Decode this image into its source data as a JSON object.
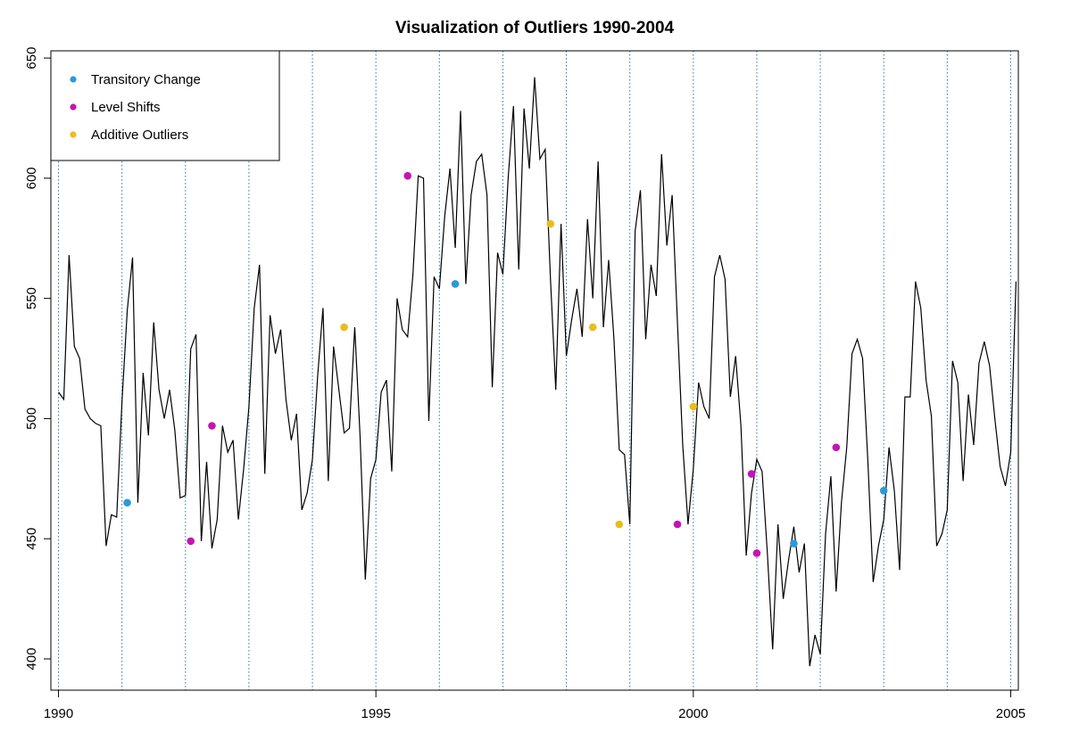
{
  "chart_data": {
    "type": "line",
    "title": "Visualization of Outliers 1990-2004",
    "xlabel": "",
    "ylabel": "",
    "xlim": [
      1989.88,
      1991.0
    ],
    "x_full_range": [
      1989.88,
      2005.12
    ],
    "ylim": [
      387,
      653
    ],
    "x_ticks": [
      1990,
      1995,
      2000,
      2005
    ],
    "y_ticks": [
      400,
      450,
      500,
      550,
      600,
      650
    ],
    "grid": "vertical dotted lines at each year start 1990-2005",
    "legend_position": "top-left",
    "colors": {
      "line": "#000000",
      "grid": "#1f78b4",
      "transitory_change": "#2b9ad6",
      "level_shifts": "#c414b4",
      "additive_outliers": "#ebbc1e"
    },
    "legend": [
      {
        "label": "Transitory Change",
        "color": "#2b9ad6"
      },
      {
        "label": "Level Shifts",
        "color": "#c414b4"
      },
      {
        "label": "Additive Outliers",
        "color": "#ebbc1e"
      }
    ],
    "series": [
      {
        "start_year": 1990,
        "frequency": 12,
        "values": [
          511,
          508,
          568,
          530,
          525,
          504,
          500,
          498,
          497,
          447,
          460,
          459,
          507,
          545,
          567,
          465,
          519,
          493,
          540,
          512,
          500,
          512,
          495,
          467,
          468,
          529,
          535,
          449,
          482,
          446,
          458,
          497,
          486,
          491,
          458,
          479,
          505,
          546,
          564,
          477,
          543,
          527,
          537,
          508,
          491,
          502,
          462,
          469,
          483,
          518,
          546,
          474,
          530,
          512,
          494,
          496,
          538,
          493,
          433,
          475,
          483,
          511,
          516,
          478,
          550,
          537,
          534,
          560,
          601,
          600,
          499,
          559,
          554,
          584,
          604,
          571,
          628,
          556,
          593,
          607,
          610,
          593,
          513,
          569,
          560,
          600,
          630,
          562,
          629,
          604,
          642,
          608,
          612,
          558,
          512,
          581,
          526,
          541,
          554,
          534,
          583,
          550,
          607,
          538,
          566,
          533,
          487,
          485,
          456,
          578,
          595,
          533,
          564,
          551,
          610,
          572,
          593,
          540,
          489,
          456,
          479,
          515,
          505,
          500,
          559,
          568,
          558,
          509,
          526,
          497,
          443,
          469,
          483,
          478,
          444,
          404,
          456,
          425,
          441,
          455,
          436,
          448,
          397,
          410,
          402,
          452,
          476,
          428,
          465,
          488,
          527,
          533,
          525,
          482,
          432,
          447,
          458,
          488,
          470,
          437,
          509,
          509,
          557,
          546,
          516,
          501,
          447,
          452,
          462,
          524,
          515,
          474,
          510,
          489,
          523,
          532,
          522,
          500,
          480,
          472,
          486,
          557
        ]
      }
    ],
    "outliers": {
      "transitory_change": [
        {
          "x": 1991.083,
          "y": 465
        },
        {
          "x": 1996.25,
          "y": 556
        },
        {
          "x": 2001.583,
          "y": 448
        },
        {
          "x": 2003.0,
          "y": 470
        }
      ],
      "level_shifts": [
        {
          "x": 1992.083,
          "y": 449
        },
        {
          "x": 1992.417,
          "y": 497
        },
        {
          "x": 1995.5,
          "y": 601
        },
        {
          "x": 1999.75,
          "y": 456
        },
        {
          "x": 2000.917,
          "y": 477
        },
        {
          "x": 2001.0,
          "y": 444
        },
        {
          "x": 2002.25,
          "y": 488
        }
      ],
      "additive_outliers": [
        {
          "x": 1994.5,
          "y": 538
        },
        {
          "x": 1997.75,
          "y": 581
        },
        {
          "x": 1998.417,
          "y": 538
        },
        {
          "x": 1998.833,
          "y": 456
        },
        {
          "x": 2000.0,
          "y": 505
        }
      ]
    }
  }
}
